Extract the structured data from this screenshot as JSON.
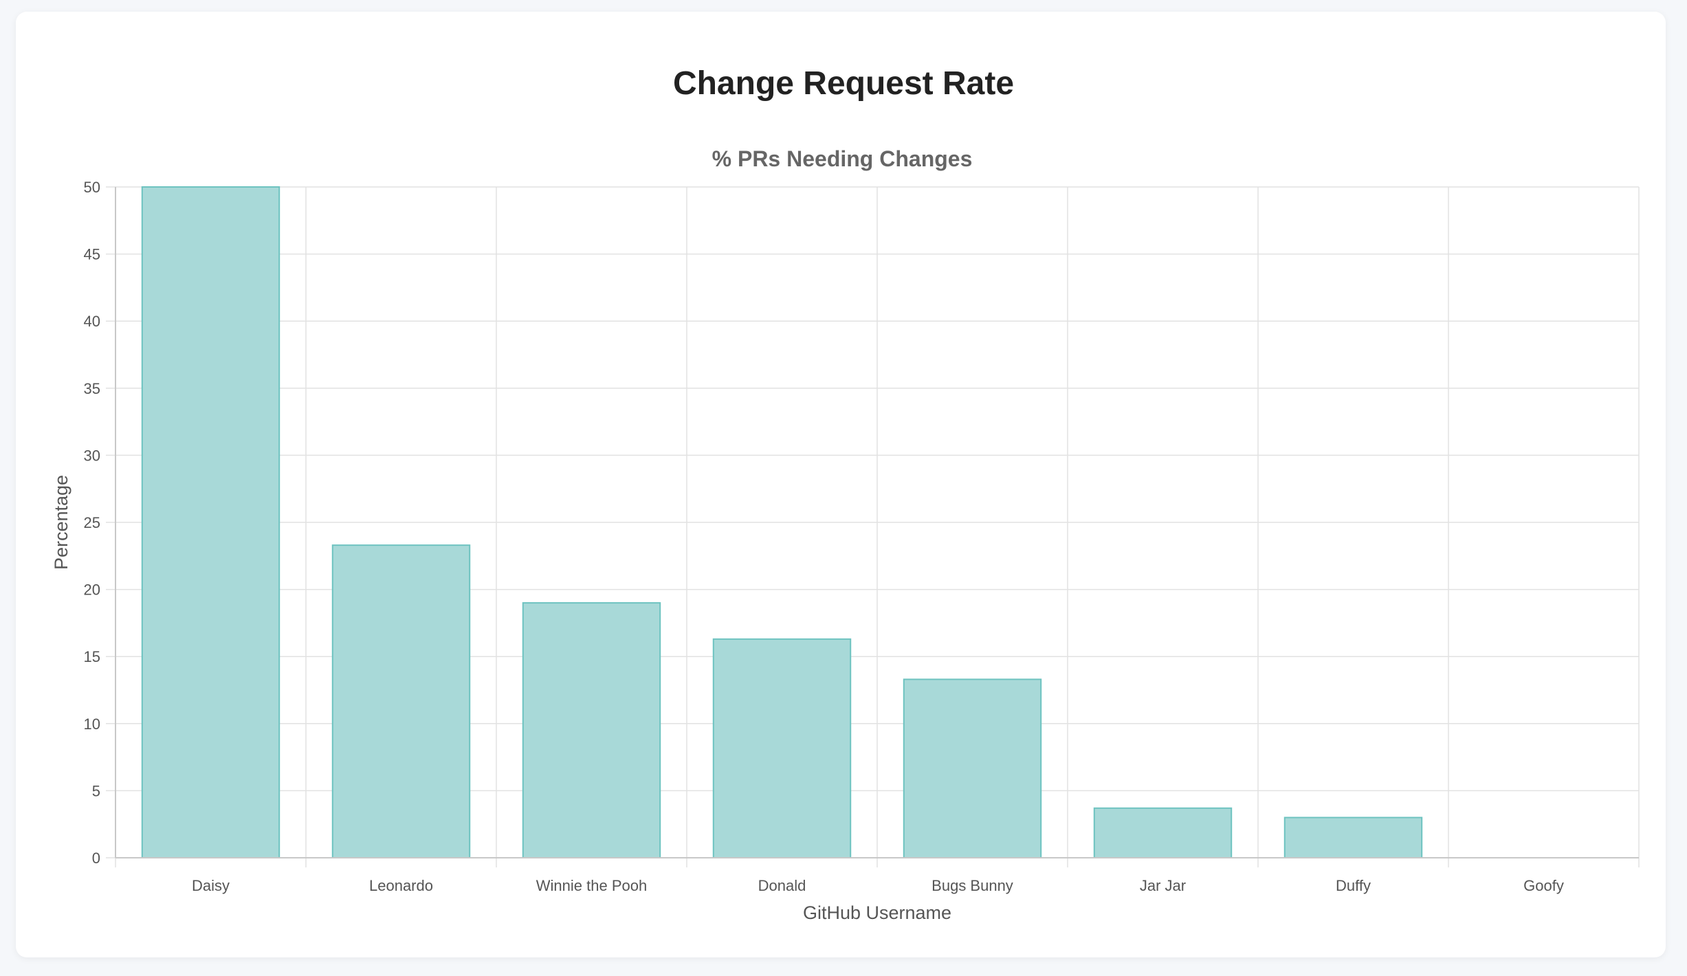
{
  "page": {
    "title": "Change Request Rate"
  },
  "chart_data": {
    "type": "bar",
    "title": "% PRs Needing Changes",
    "xlabel": "GitHub Username",
    "ylabel": "Percentage",
    "categories": [
      "Daisy",
      "Leonardo",
      "Winnie the Pooh",
      "Donald",
      "Bugs Bunny",
      "Jar Jar",
      "Duffy",
      "Goofy"
    ],
    "values": [
      50,
      23.3,
      19,
      16.3,
      13.3,
      3.7,
      3,
      0
    ],
    "ylim": [
      0,
      50
    ],
    "yticks": [
      "0",
      "5",
      "10",
      "15",
      "20",
      "25",
      "30",
      "35",
      "40",
      "45",
      "50"
    ],
    "grid": true,
    "colors": {
      "bar_fill": "#a8d9d8",
      "bar_stroke": "#6ec3c0",
      "grid": "#e2e2e2"
    }
  }
}
